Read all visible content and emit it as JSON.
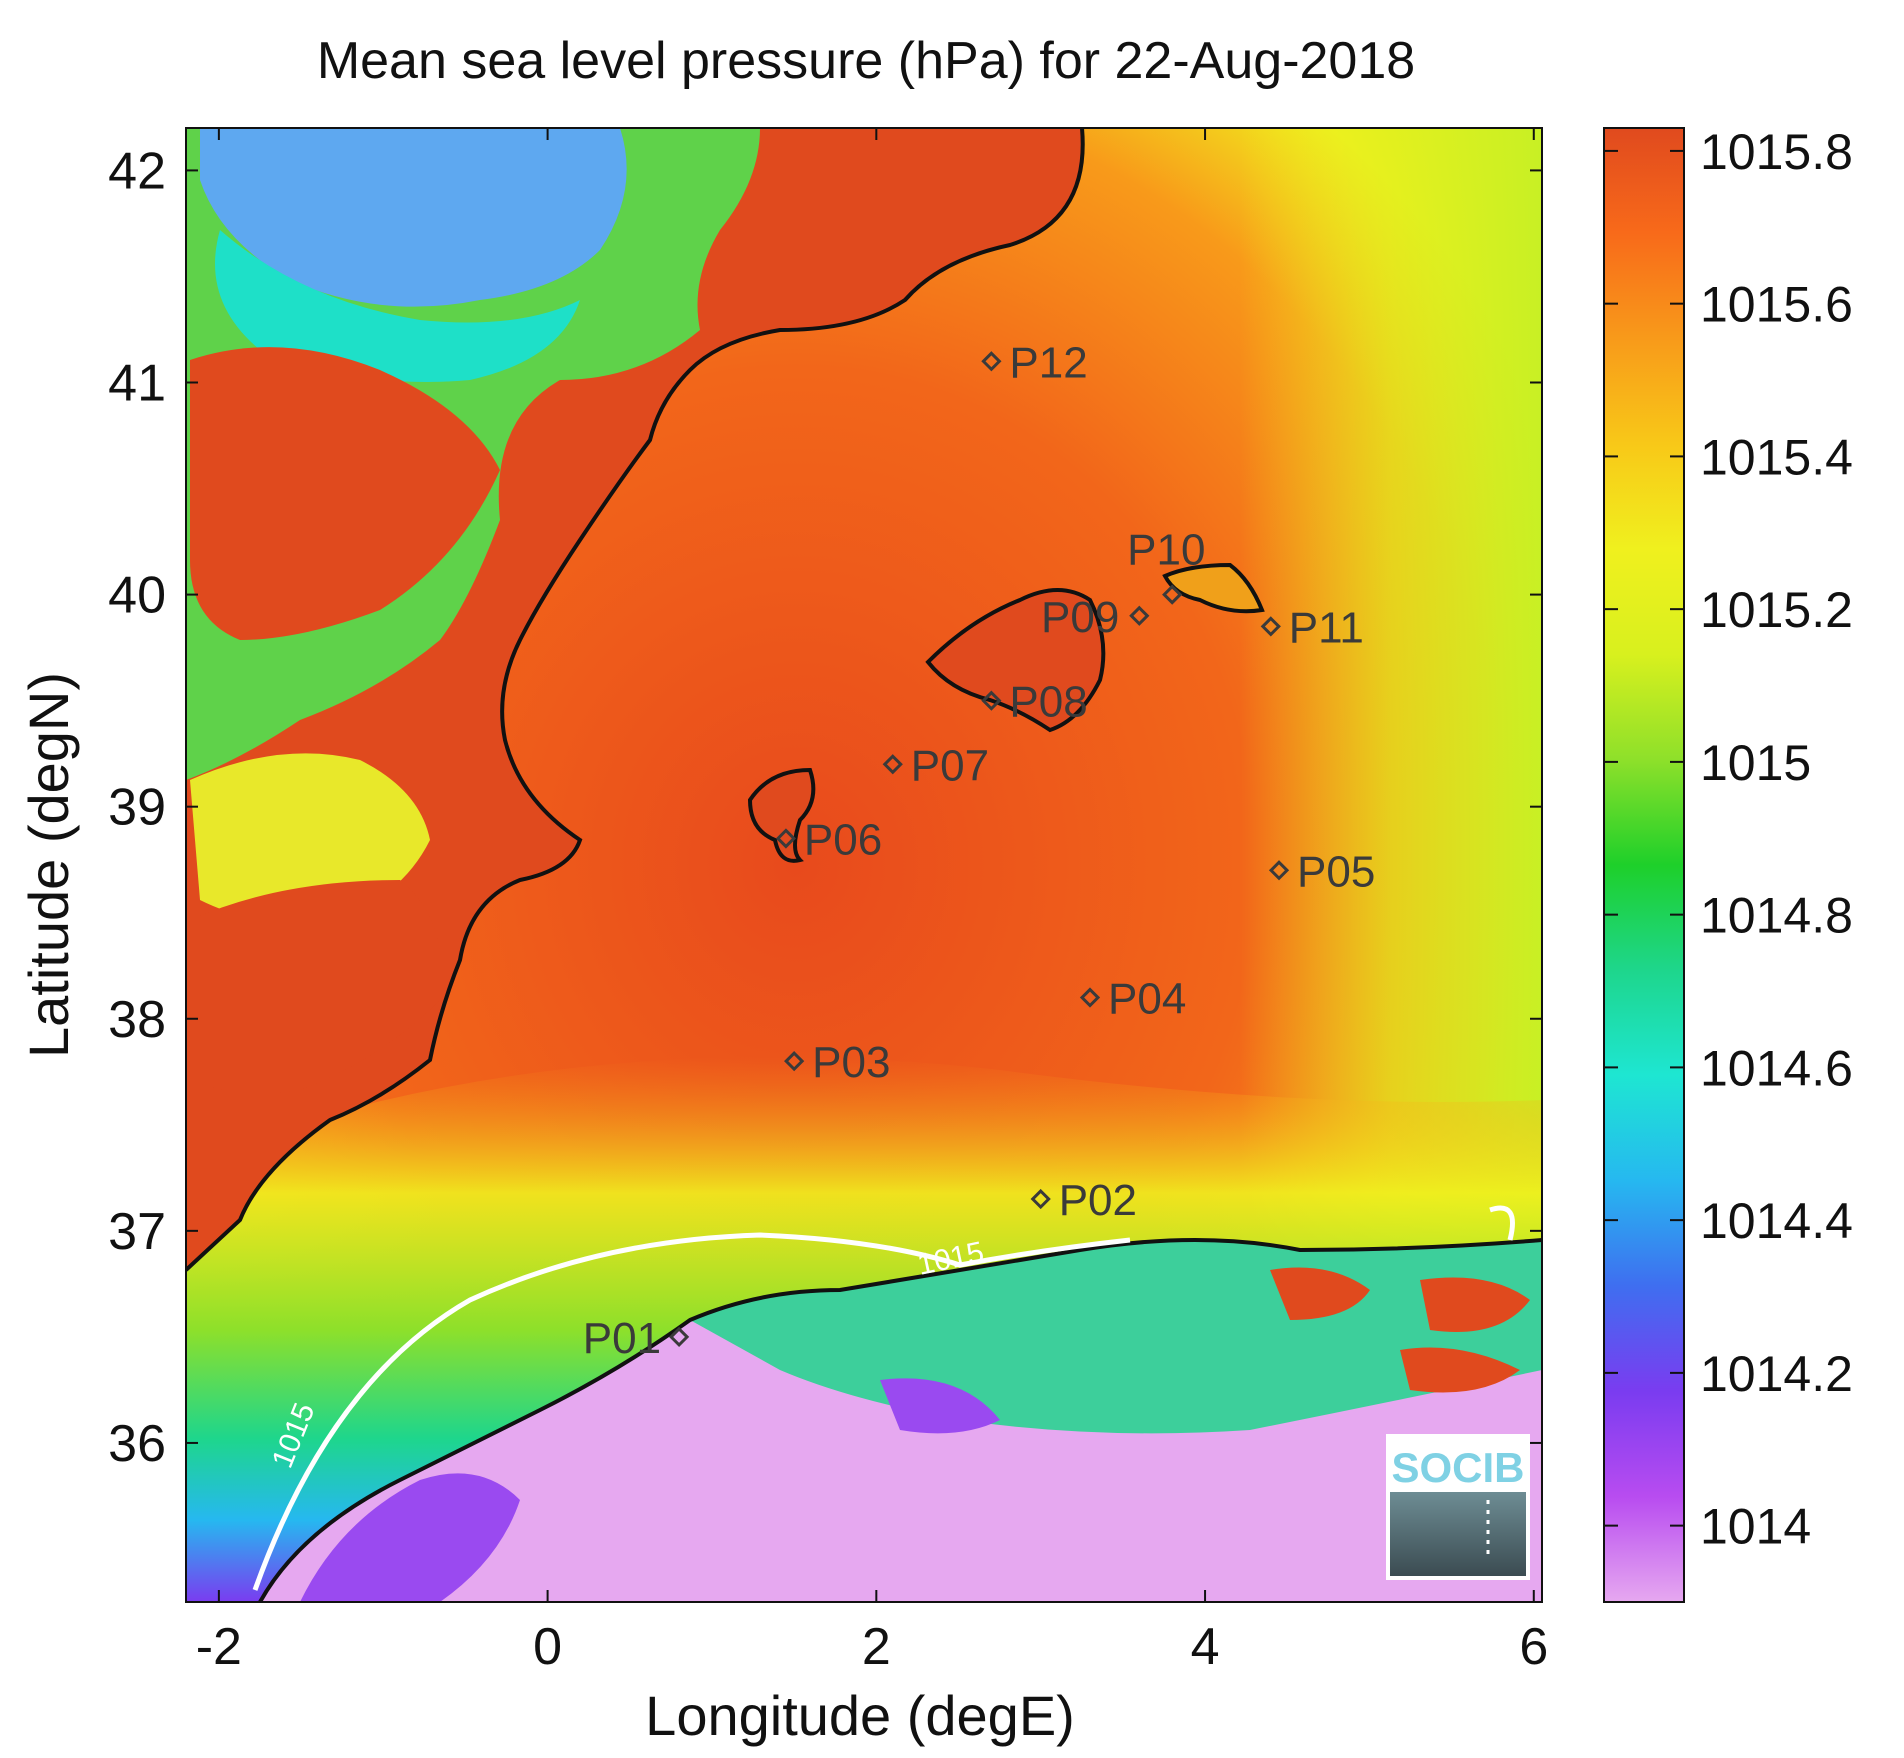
{
  "title": "Mean sea level pressure (hPa) for 22-Aug-2018",
  "axes": {
    "xlabel": "Longitude (degE)",
    "ylabel": "Latitude (degN)",
    "xlim": [
      -2.2,
      6.05
    ],
    "ylim": [
      35.25,
      42.2
    ],
    "xticks": [
      "-2",
      "0",
      "2",
      "4",
      "6"
    ],
    "yticks": [
      "36",
      "37",
      "38",
      "39",
      "40",
      "41",
      "42"
    ]
  },
  "colorbar": {
    "range": [
      1013.9,
      1015.83
    ],
    "ticks": [
      "1014",
      "1014.2",
      "1014.4",
      "1014.6",
      "1014.8",
      "1015",
      "1015.2",
      "1015.4",
      "1015.6",
      "1015.8"
    ],
    "colors": [
      "#e6a8f0",
      "#b84cf0",
      "#7a3cf0",
      "#3f6ef0",
      "#26b8f0",
      "#1ee6d2",
      "#1ed68c",
      "#1ed02a",
      "#8ee02a",
      "#d8f01e",
      "#f0f01e",
      "#f8c818",
      "#f89a1a",
      "#f86a1a",
      "#e04a1e"
    ]
  },
  "points": [
    {
      "label": "P01",
      "lon": 0.8,
      "lat": 36.5
    },
    {
      "label": "P02",
      "lon": 3.0,
      "lat": 37.15
    },
    {
      "label": "P03",
      "lon": 1.5,
      "lat": 37.8
    },
    {
      "label": "P04",
      "lon": 3.3,
      "lat": 38.1
    },
    {
      "label": "P05",
      "lon": 4.45,
      "lat": 38.7
    },
    {
      "label": "P06",
      "lon": 1.45,
      "lat": 38.85
    },
    {
      "label": "P07",
      "lon": 2.1,
      "lat": 39.2
    },
    {
      "label": "P08",
      "lon": 2.7,
      "lat": 39.5
    },
    {
      "label": "P09",
      "lon": 3.6,
      "lat": 39.9
    },
    {
      "label": "P10",
      "lon": 3.8,
      "lat": 40.0
    },
    {
      "label": "P11",
      "lon": 4.4,
      "lat": 39.85
    },
    {
      "label": "P12",
      "lon": 2.7,
      "lat": 41.1
    }
  ],
  "contour": {
    "level": "1015",
    "color": "#ffffff"
  },
  "logo": {
    "text": "SOCIB"
  },
  "regions": {
    "sea": "sea",
    "iberian-land": "land",
    "north-africa": "land",
    "mallorca": "island",
    "menorca": "island",
    "ibiza": "island"
  }
}
